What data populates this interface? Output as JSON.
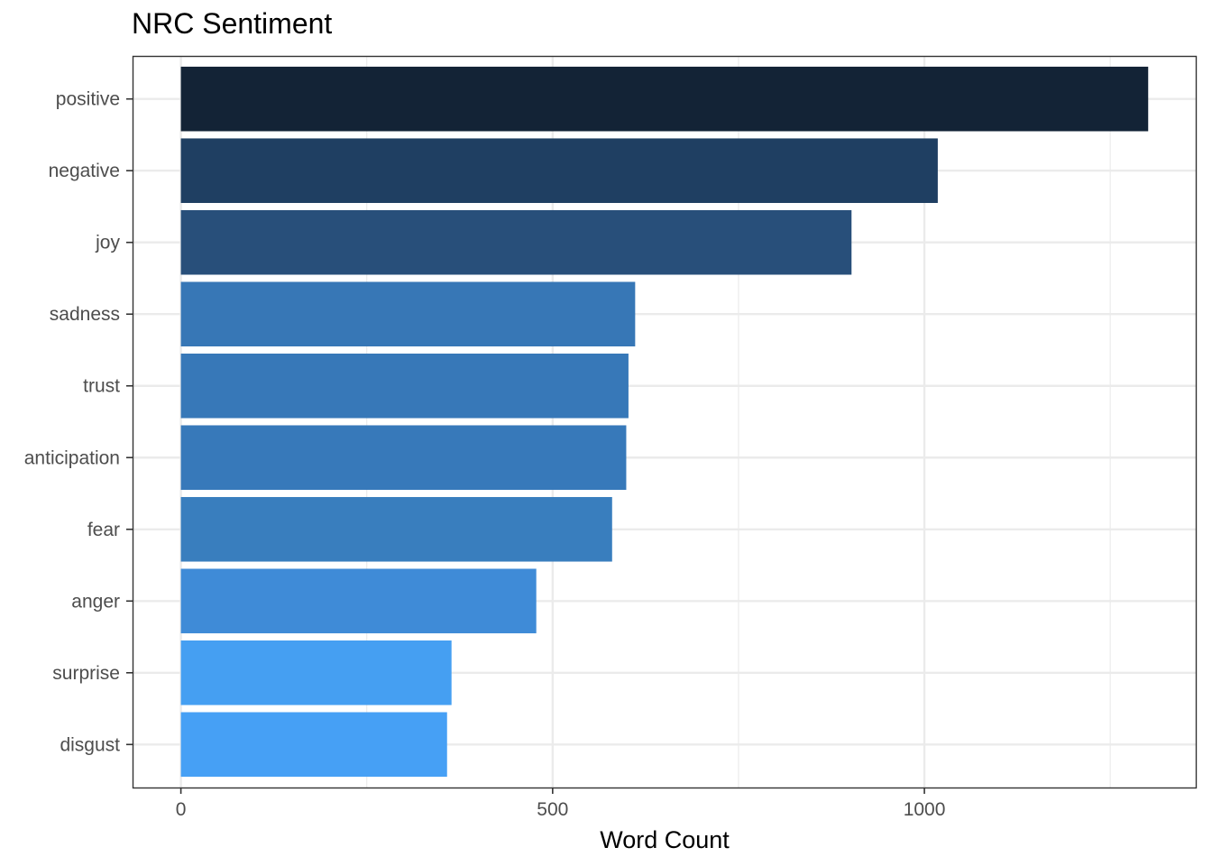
{
  "chart_data": {
    "type": "bar",
    "orientation": "horizontal",
    "title": "NRC Sentiment",
    "xlabel": "Word Count",
    "ylabel": "",
    "categories": [
      "positive",
      "negative",
      "joy",
      "sadness",
      "trust",
      "anticipation",
      "fear",
      "anger",
      "surprise",
      "disgust"
    ],
    "values": [
      1301,
      1018,
      902,
      611,
      602,
      599,
      580,
      478,
      364,
      358
    ],
    "colors": [
      "#132336",
      "#1f3f62",
      "#284f7a",
      "#3777b6",
      "#3778b8",
      "#3779ba",
      "#397ebe",
      "#3f8bd7",
      "#459ff2",
      "#46a0f5"
    ],
    "xlim": [
      -65,
      1365
    ],
    "xticks": [
      0,
      500,
      1000
    ],
    "x_minor_gridlines": [
      250,
      750,
      1250
    ],
    "grid": true,
    "legend": "none"
  }
}
